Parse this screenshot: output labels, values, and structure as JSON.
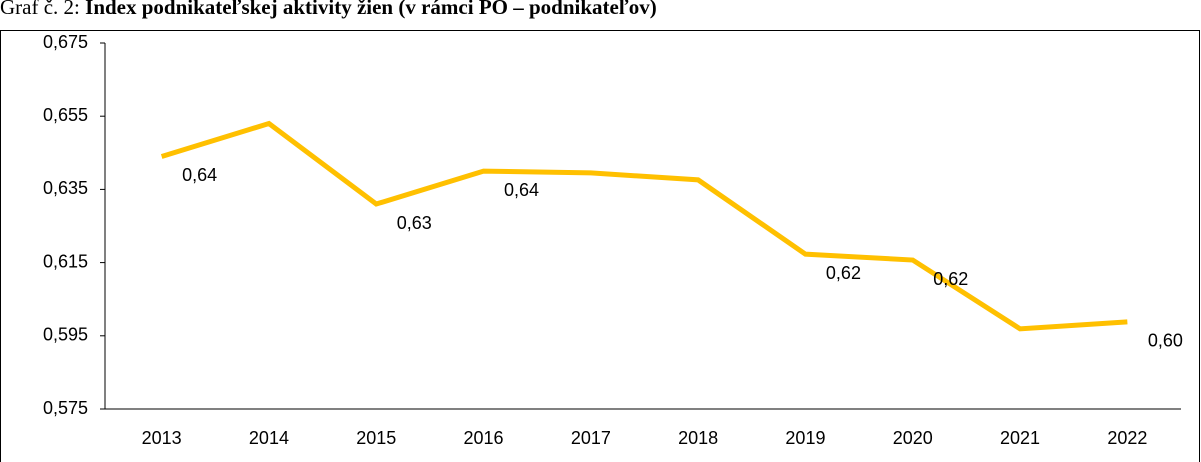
{
  "chart_data": {
    "type": "line",
    "title_prefix": "Graf č. 2:",
    "title": "Index podnikateľskej aktivity žien (v rámci PO – podnikateľov)",
    "categories": [
      "2013",
      "2014",
      "2015",
      "2016",
      "2017",
      "2018",
      "2019",
      "2020",
      "2021",
      "2022"
    ],
    "series": [
      {
        "color": "#ffc000",
        "values": [
          0.644,
          0.653,
          0.631,
          0.64,
          0.6395,
          0.6376,
          0.6173,
          0.6157,
          0.5969,
          0.5988
        ],
        "value_labels": [
          "0,64",
          null,
          "0,63",
          "0,64",
          null,
          null,
          "0,62",
          "0,62",
          null,
          "0,60"
        ]
      }
    ],
    "ylim": [
      0.575,
      0.675
    ],
    "yticks": [
      {
        "value": 0.575,
        "label": "0,575"
      },
      {
        "value": 0.595,
        "label": "0,595"
      },
      {
        "value": 0.615,
        "label": "0,615"
      },
      {
        "value": 0.635,
        "label": "0,635"
      },
      {
        "value": 0.655,
        "label": "0,655"
      },
      {
        "value": 0.675,
        "label": "0,675"
      }
    ],
    "grid": false
  }
}
